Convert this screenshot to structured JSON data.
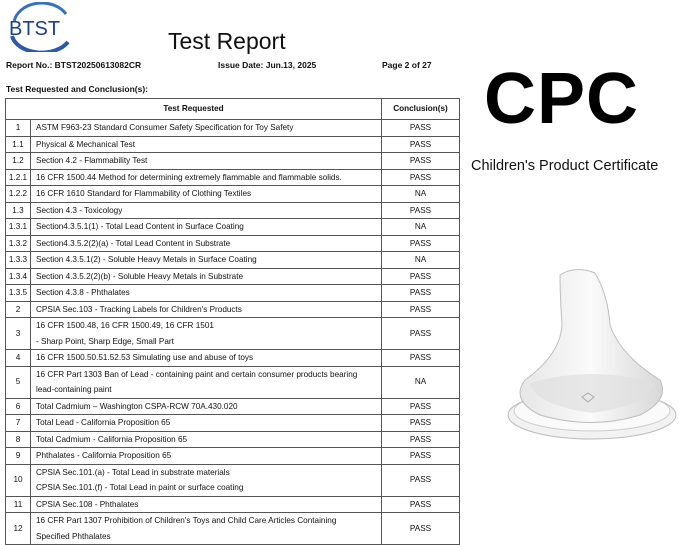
{
  "logo": {
    "text": "BTST",
    "color": "#1e3f8a"
  },
  "header": {
    "title": "Test Report",
    "report_no": "Report No.: BTST20250613082CR",
    "issue_date": "Issue Date: Jun.13, 2025",
    "page": "Page 2 of   27"
  },
  "section_title": "Test Requested and Conclusion(s):",
  "table": {
    "headers": [
      "Test Requested",
      "Conclusion(s)"
    ],
    "rows": [
      {
        "no": "1",
        "test": [
          "ASTM F963-23 Standard Consumer Safety Specification for Toy Safety"
        ],
        "result": "PASS"
      },
      {
        "no": "1.1",
        "test": [
          "Physical & Mechanical Test"
        ],
        "result": "PASS"
      },
      {
        "no": "1.2",
        "test": [
          "Section 4.2 - Flammability Test"
        ],
        "result": "PASS"
      },
      {
        "no": "1.2.1",
        "test": [
          "16 CFR 1500.44 Method for determining extremely flammable and flammable solids."
        ],
        "result": "PASS"
      },
      {
        "no": "1.2.2",
        "test": [
          "16 CFR 1610 Standard for Flammability of Clothing Textiles"
        ],
        "result": "NA"
      },
      {
        "no": "1.3",
        "test": [
          "Section 4.3 - Toxicology"
        ],
        "result": "PASS"
      },
      {
        "no": "1.3.1",
        "test": [
          "Section4.3.5.1(1) - Total Lead Content in Surface Coating"
        ],
        "result": "NA"
      },
      {
        "no": "1.3.2",
        "test": [
          "Section4.3.5.2(2)(a) - Total Lead Content in Substrate"
        ],
        "result": "PASS"
      },
      {
        "no": "1.3.3",
        "test": [
          "Section 4.3.5.1(2) - Soluble Heavy Metals in Surface Coating"
        ],
        "result": "NA"
      },
      {
        "no": "1.3.4",
        "test": [
          "Section 4.3.5.2(2)(b) - Soluble Heavy Metals in Substrate"
        ],
        "result": "PASS"
      },
      {
        "no": "1.3.5",
        "test": [
          "Section 4.3.8 - Phthalates"
        ],
        "result": "PASS"
      },
      {
        "no": "2",
        "test": [
          "CPSIA Sec.103 - Tracking Labels for Children's Products"
        ],
        "result": "PASS"
      },
      {
        "no": "3",
        "test": [
          "16 CFR 1500.48, 16 CFR 1500.49, 16 CFR 1501",
          "- Sharp Point, Sharp Edge, Small Part"
        ],
        "result": "PASS"
      },
      {
        "no": "4",
        "test": [
          "16 CFR 1500.50.51.52.53 Simulating use and abuse of toys"
        ],
        "result": "PASS"
      },
      {
        "no": "5",
        "test": [
          "16 CFR Part 1303 Ban of Lead - containing paint and certain consumer products bearing",
          "lead-containing paint"
        ],
        "result": "NA"
      },
      {
        "no": "6",
        "test": [
          "Total Cadmium – Washington CSPA-RCW 70A.430.020"
        ],
        "result": "PASS"
      },
      {
        "no": "7",
        "test": [
          "Total Lead - California Proposition 65"
        ],
        "result": "PASS"
      },
      {
        "no": "8",
        "test": [
          "Total Cadmium - California Proposition 65"
        ],
        "result": "PASS"
      },
      {
        "no": "9",
        "test": [
          "Phthalates - California Proposition 65"
        ],
        "result": "PASS"
      },
      {
        "no": "10",
        "test": [
          "CPSIA Sec.101.(a) - Total Lead in substrate materials",
          "CPSIA Sec.101.(f) - Total Lead in paint or surface coating"
        ],
        "result": "PASS"
      },
      {
        "no": "11",
        "test": [
          "CPSIA Sec.108 - Phthalates"
        ],
        "result": "PASS"
      },
      {
        "no": "12",
        "test": [
          "16 CFR Part 1307 Prohibition of Children's Toys and Child Care Articles Containing",
          "Specified Phthalates"
        ],
        "result": "PASS"
      }
    ]
  },
  "badge": {
    "title": "CPC",
    "subtitle": "Children's Product Certificate"
  }
}
